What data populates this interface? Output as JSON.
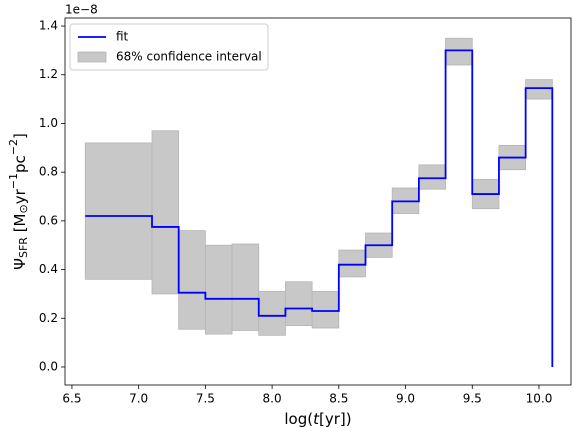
{
  "chart_data": {
    "type": "step",
    "offset_text": "1e−8",
    "xlabel": [
      "log(",
      "t",
      "[yr])"
    ],
    "ylabel": [
      "Ψ",
      "SFR",
      " [M",
      "⊙",
      "yr",
      "−1",
      "pc",
      "−2",
      "]"
    ],
    "x": [
      6.6,
      7.1,
      7.3,
      7.5,
      7.7,
      7.9,
      8.1,
      8.3,
      8.5,
      8.7,
      8.9,
      9.1,
      9.3,
      9.5,
      9.7,
      9.9,
      10.1
    ],
    "series": [
      {
        "name": "fit",
        "color": "#0000ff",
        "values": [
          0.62,
          0.575,
          0.305,
          0.28,
          0.28,
          0.21,
          0.24,
          0.23,
          0.42,
          0.5,
          0.68,
          0.775,
          1.3,
          0.71,
          0.86,
          1.145,
          0
        ]
      },
      {
        "name": "68% confidence interval",
        "color": "#c8c8c8",
        "lower": [
          0.36,
          0.3,
          0.155,
          0.135,
          0.15,
          0.13,
          0.17,
          0.16,
          0.37,
          0.45,
          0.63,
          0.73,
          1.24,
          0.65,
          0.81,
          1.1,
          null
        ],
        "upper": [
          0.92,
          0.97,
          0.56,
          0.5,
          0.505,
          0.31,
          0.35,
          0.31,
          0.48,
          0.55,
          0.735,
          0.83,
          1.35,
          0.77,
          0.91,
          1.18,
          null
        ]
      }
    ],
    "xlim": [
      6.448,
      10.24
    ],
    "ylim": [
      -0.074,
      1.433
    ],
    "xticks": [
      6.5,
      {
        "value": 7,
        "label": "7.0"
      },
      7.5,
      {
        "value": 8,
        "label": "8.0"
      },
      8.5,
      {
        "value": 9,
        "label": "9.0"
      },
      9.5,
      {
        "value": 10,
        "label": "10.0"
      }
    ],
    "yticks": [
      {
        "value": 0,
        "label": "0.0"
      },
      0.2,
      0.4,
      0.6,
      0.8,
      {
        "value": 1,
        "label": "1.0"
      },
      1.2,
      1.4
    ],
    "legend": "upper left",
    "grid": false
  }
}
